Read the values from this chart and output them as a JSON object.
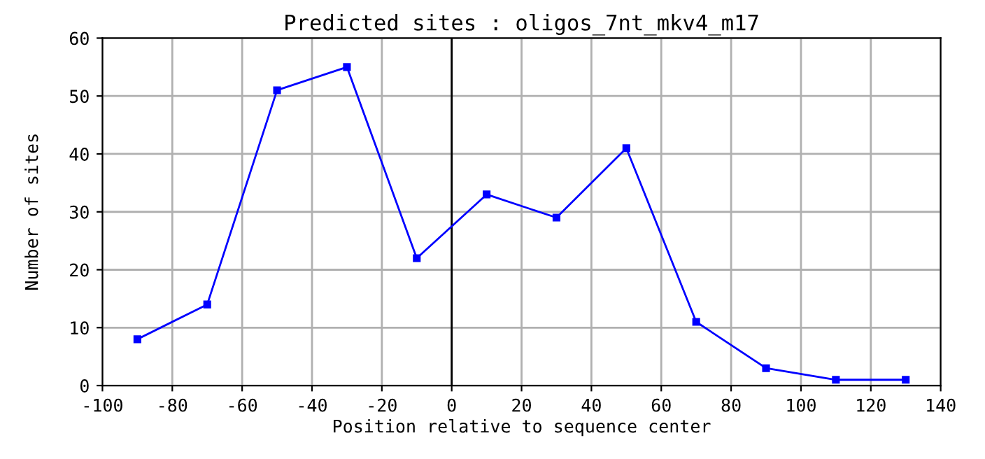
{
  "chart_data": {
    "type": "line",
    "title": "Predicted sites : oligos_7nt_mkv4_m17",
    "xlabel": "Position relative to sequence center",
    "ylabel": "Number of sites",
    "x": [
      -90,
      -70,
      -50,
      -30,
      -10,
      10,
      30,
      50,
      70,
      90,
      110,
      130
    ],
    "series": [
      {
        "color": "#0000ff",
        "values": [
          8,
          14,
          51,
          55,
          22,
          33,
          29,
          41,
          11,
          3,
          1,
          1
        ]
      }
    ],
    "xlim": [
      -100,
      140
    ],
    "xticks": [
      -100,
      -80,
      -60,
      -40,
      -20,
      0,
      20,
      40,
      60,
      80,
      100,
      120,
      140
    ],
    "ylim": [
      0,
      60
    ],
    "yticks": [
      0,
      10,
      20,
      30,
      40,
      50,
      60
    ],
    "ref_lines": [
      {
        "axis": "x",
        "value": 0,
        "color": "#000000"
      }
    ],
    "grid": true,
    "marker": "square",
    "line_style": "solid"
  }
}
